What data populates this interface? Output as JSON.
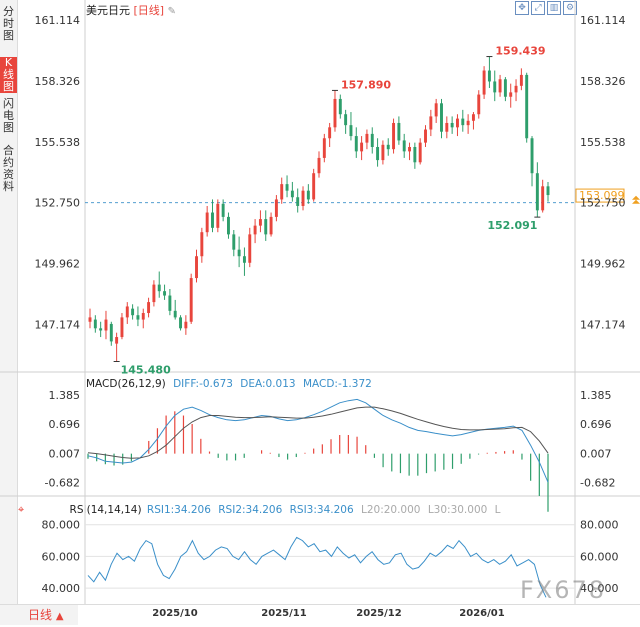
{
  "title": {
    "symbol": "美元日元",
    "period": "[日线]",
    "edit_icon": "pencil-icon"
  },
  "toolbar": {
    "icons": [
      "move-icon",
      "fit-icon",
      "bar-style-icon",
      "settings-icon"
    ]
  },
  "sidebar": {
    "tabs": [
      "分时图",
      "K线图",
      "闪电图",
      "合约资料"
    ],
    "active": 1
  },
  "price_axis": {
    "labels": [
      "161.114",
      "158.326",
      "155.538",
      "152.750",
      "149.962",
      "147.174"
    ]
  },
  "current_price": "153.099",
  "annotations": {
    "high_recent": "159.439",
    "high_prev": "157.890",
    "low": "145.480",
    "low_recent": "152.091"
  },
  "macd": {
    "header": "MACD(26,12,9)",
    "diff": "DIFF:-0.673",
    "dea": "DEA:0.013",
    "macd": "MACD:-1.372",
    "axis_labels": [
      "1.385",
      "0.696",
      "0.007",
      "-0.682"
    ]
  },
  "rsi": {
    "header": "RSI(14,14,14)",
    "rsi1": "RSI1:34.206",
    "rsi2": "RSI2:34.206",
    "rsi3": "RSI3:34.206",
    "l20": "L20:20.000",
    "l30": "L30:30.000",
    "l": "L",
    "axis_labels": [
      "80.000",
      "60.000",
      "40.000"
    ],
    "icon": "target-icon"
  },
  "x_axis": {
    "labels": [
      "2025/10",
      "2025/11",
      "2025/12",
      "2026/01"
    ]
  },
  "period_selector": {
    "label": "日线",
    "arrow": "▲"
  },
  "watermark": "FX678",
  "colors": {
    "up": "#e8453c",
    "down": "#2e9e6b",
    "diff": "#3a8fc9",
    "dea": "#555555",
    "rsi": "#3a8fc9",
    "dashed": "#3a8fc9"
  },
  "chart_data": [
    {
      "type": "candlestick",
      "series_name": "美元日元",
      "ylim": [
        145.0,
        161.8
      ],
      "ohlc": [
        [
          147.3,
          147.9,
          147.0,
          147.5
        ],
        [
          147.4,
          147.6,
          146.8,
          147.0
        ],
        [
          147.0,
          147.3,
          146.6,
          146.9
        ],
        [
          146.9,
          147.8,
          146.5,
          147.4
        ],
        [
          147.2,
          147.3,
          146.2,
          146.4
        ],
        [
          146.3,
          146.8,
          145.48,
          146.6
        ],
        [
          146.6,
          147.7,
          146.5,
          147.5
        ],
        [
          147.5,
          148.2,
          147.2,
          148.0
        ],
        [
          147.9,
          148.1,
          147.4,
          147.6
        ],
        [
          147.6,
          148.0,
          147.1,
          147.4
        ],
        [
          147.4,
          147.9,
          147.0,
          147.7
        ],
        [
          147.7,
          148.4,
          147.5,
          148.2
        ],
        [
          148.2,
          149.2,
          148.0,
          149.0
        ],
        [
          149.0,
          149.6,
          148.4,
          148.7
        ],
        [
          148.7,
          149.0,
          148.3,
          148.5
        ],
        [
          148.5,
          148.8,
          147.6,
          147.8
        ],
        [
          147.8,
          148.3,
          147.4,
          147.5
        ],
        [
          147.5,
          147.6,
          146.9,
          147.0
        ],
        [
          147.0,
          147.6,
          146.7,
          147.3
        ],
        [
          147.3,
          149.5,
          147.2,
          149.3
        ],
        [
          149.3,
          150.6,
          149.1,
          150.3
        ],
        [
          150.3,
          151.6,
          150.0,
          151.4
        ],
        [
          151.4,
          152.6,
          151.2,
          152.3
        ],
        [
          152.3,
          152.9,
          151.4,
          151.6
        ],
        [
          151.6,
          152.9,
          151.4,
          152.7
        ],
        [
          152.7,
          152.9,
          151.9,
          152.1
        ],
        [
          152.1,
          152.3,
          151.1,
          151.3
        ],
        [
          151.3,
          151.5,
          150.3,
          150.6
        ],
        [
          150.6,
          151.2,
          149.8,
          150.3
        ],
        [
          150.3,
          150.7,
          149.4,
          150.0
        ],
        [
          150.0,
          151.6,
          149.8,
          151.3
        ],
        [
          151.3,
          152.0,
          150.9,
          151.7
        ],
        [
          151.7,
          152.4,
          151.4,
          152.0
        ],
        [
          152.0,
          152.4,
          151.0,
          151.3
        ],
        [
          151.3,
          152.3,
          151.2,
          152.1
        ],
        [
          152.1,
          153.1,
          151.9,
          152.9
        ],
        [
          152.9,
          153.9,
          152.7,
          153.6
        ],
        [
          153.6,
          154.0,
          153.0,
          153.3
        ],
        [
          153.3,
          153.7,
          152.8,
          153.0
        ],
        [
          153.0,
          153.4,
          152.3,
          152.6
        ],
        [
          152.6,
          153.5,
          152.4,
          153.3
        ],
        [
          153.3,
          153.6,
          152.7,
          152.9
        ],
        [
          152.9,
          154.3,
          152.8,
          154.1
        ],
        [
          154.1,
          155.1,
          153.9,
          154.8
        ],
        [
          154.8,
          155.9,
          154.6,
          155.7
        ],
        [
          155.7,
          156.4,
          155.3,
          156.2
        ],
        [
          156.2,
          157.89,
          156.0,
          157.5
        ],
        [
          157.5,
          157.7,
          156.6,
          156.8
        ],
        [
          156.8,
          157.0,
          155.9,
          156.3
        ],
        [
          156.3,
          156.9,
          155.6,
          155.8
        ],
        [
          155.8,
          156.2,
          154.8,
          155.1
        ],
        [
          155.1,
          155.8,
          154.7,
          155.5
        ],
        [
          155.5,
          156.1,
          155.2,
          155.9
        ],
        [
          155.9,
          156.2,
          155.0,
          155.3
        ],
        [
          155.3,
          155.7,
          154.4,
          154.7
        ],
        [
          154.7,
          155.6,
          154.5,
          155.4
        ],
        [
          155.4,
          155.7,
          154.9,
          155.2
        ],
        [
          155.2,
          156.6,
          155.0,
          156.4
        ],
        [
          156.4,
          156.7,
          155.4,
          155.6
        ],
        [
          155.6,
          155.9,
          154.8,
          155.1
        ],
        [
          155.1,
          155.5,
          154.7,
          155.3
        ],
        [
          155.3,
          155.5,
          154.3,
          154.6
        ],
        [
          154.6,
          155.7,
          154.5,
          155.5
        ],
        [
          155.5,
          156.3,
          155.3,
          156.1
        ],
        [
          156.1,
          157.0,
          155.8,
          156.7
        ],
        [
          156.7,
          157.5,
          156.4,
          157.3
        ],
        [
          157.3,
          157.5,
          155.7,
          156.0
        ],
        [
          156.0,
          156.7,
          155.7,
          156.4
        ],
        [
          156.4,
          156.7,
          155.9,
          156.2
        ],
        [
          156.2,
          156.8,
          155.8,
          156.6
        ],
        [
          156.6,
          157.0,
          156.0,
          156.3
        ],
        [
          156.3,
          156.8,
          155.9,
          156.5
        ],
        [
          156.5,
          156.9,
          156.1,
          156.8
        ],
        [
          156.8,
          157.9,
          156.6,
          157.7
        ],
        [
          157.7,
          159.0,
          157.5,
          158.8
        ],
        [
          158.8,
          159.44,
          158.0,
          158.3
        ],
        [
          158.3,
          158.8,
          157.4,
          157.8
        ],
        [
          157.8,
          158.6,
          157.6,
          158.4
        ],
        [
          158.4,
          158.5,
          157.4,
          157.6
        ],
        [
          157.6,
          158.2,
          157.1,
          157.8
        ],
        [
          157.8,
          158.4,
          157.4,
          158.1
        ],
        [
          158.1,
          158.9,
          157.9,
          158.6
        ],
        [
          158.6,
          158.7,
          155.5,
          155.7
        ],
        [
          155.7,
          155.8,
          153.5,
          154.1
        ],
        [
          154.1,
          154.6,
          152.09,
          152.4
        ],
        [
          152.4,
          153.8,
          152.3,
          153.5
        ],
        [
          153.5,
          153.7,
          152.8,
          153.1
        ]
      ]
    },
    {
      "type": "line",
      "title": "MACD(26,12,9)",
      "ylim": [
        -1.0,
        1.55
      ],
      "series": [
        {
          "name": "DIFF",
          "values": [
            -0.05,
            -0.1,
            -0.18,
            -0.2,
            -0.22,
            -0.2,
            -0.1,
            0.1,
            0.35,
            0.65,
            0.9,
            1.05,
            1.1,
            1.02,
            0.92,
            0.85,
            0.8,
            0.78,
            0.8,
            0.85,
            0.9,
            0.88,
            0.82,
            0.78,
            0.8,
            0.85,
            0.92,
            1.0,
            1.1,
            1.2,
            1.25,
            1.28,
            1.2,
            1.05,
            0.9,
            0.8,
            0.72,
            0.62,
            0.55,
            0.52,
            0.48,
            0.45,
            0.42,
            0.45,
            0.5,
            0.55,
            0.58,
            0.6,
            0.62,
            0.65,
            0.55,
            0.2,
            -0.2,
            -0.673
          ]
        },
        {
          "name": "DEA",
          "values": [
            0.02,
            0.0,
            -0.03,
            -0.06,
            -0.09,
            -0.11,
            -0.1,
            -0.05,
            0.05,
            0.2,
            0.4,
            0.6,
            0.75,
            0.85,
            0.9,
            0.9,
            0.88,
            0.86,
            0.85,
            0.85,
            0.86,
            0.87,
            0.86,
            0.85,
            0.84,
            0.84,
            0.86,
            0.89,
            0.93,
            0.98,
            1.03,
            1.08,
            1.1,
            1.1,
            1.06,
            1.01,
            0.95,
            0.88,
            0.81,
            0.75,
            0.69,
            0.64,
            0.6,
            0.57,
            0.56,
            0.56,
            0.57,
            0.58,
            0.59,
            0.61,
            0.62,
            0.52,
            0.3,
            0.013
          ]
        },
        {
          "name": "MACD",
          "values": [
            -0.12,
            -0.18,
            -0.25,
            -0.28,
            -0.26,
            -0.18,
            0.0,
            0.3,
            0.6,
            0.9,
            1.0,
            0.9,
            0.7,
            0.35,
            0.05,
            -0.1,
            -0.16,
            -0.16,
            -0.1,
            0.0,
            0.08,
            0.02,
            -0.08,
            -0.14,
            -0.08,
            0.02,
            0.12,
            0.22,
            0.34,
            0.44,
            0.44,
            0.4,
            0.2,
            -0.1,
            -0.32,
            -0.42,
            -0.46,
            -0.52,
            -0.52,
            -0.46,
            -0.42,
            -0.38,
            -0.36,
            -0.24,
            -0.12,
            -0.02,
            0.02,
            0.04,
            0.06,
            0.08,
            -0.14,
            -0.64,
            -1.0,
            -1.372
          ]
        }
      ]
    },
    {
      "type": "line",
      "title": "RSI(14,14,14)",
      "ylim": [
        30,
        88
      ],
      "yticks": [
        80,
        60,
        40
      ],
      "series": [
        {
          "name": "RSI1",
          "values": [
            48,
            44,
            50,
            45,
            55,
            62,
            58,
            60,
            57,
            65,
            70,
            68,
            55,
            48,
            46,
            52,
            60,
            63,
            70,
            62,
            58,
            60,
            64,
            66,
            65,
            60,
            58,
            63,
            58,
            55,
            60,
            62,
            64,
            61,
            58,
            66,
            72,
            70,
            66,
            68,
            63,
            64,
            60,
            66,
            62,
            59,
            61,
            56,
            60,
            63,
            58,
            55,
            56,
            61,
            62,
            55,
            52,
            53,
            57,
            62,
            60,
            63,
            67,
            65,
            70,
            66,
            60,
            62,
            58,
            56,
            58,
            55,
            57,
            61,
            54,
            56,
            58,
            55,
            42,
            34.206
          ]
        }
      ]
    }
  ]
}
